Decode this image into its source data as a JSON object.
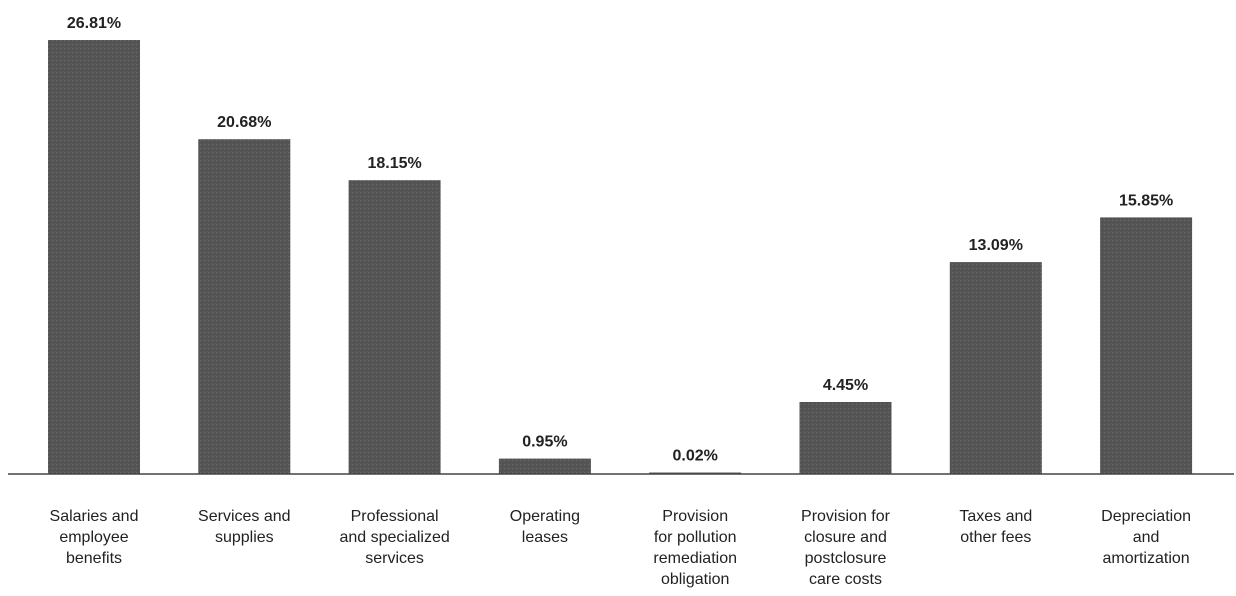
{
  "chart_data": {
    "type": "bar",
    "title": "",
    "xlabel": "",
    "ylabel": "",
    "ylim": [
      0,
      26.81
    ],
    "grid": false,
    "legend": "none",
    "bar_color": "#555555",
    "categories": [
      [
        "Salaries and",
        "employee",
        "benefits"
      ],
      [
        "Services and",
        "supplies"
      ],
      [
        "Professional",
        "and specialized",
        "services"
      ],
      [
        "Operating",
        "leases"
      ],
      [
        "Provision",
        "for pollution",
        "remediation",
        "obligation"
      ],
      [
        "Provision for",
        "closure and",
        "postclosure",
        "care costs"
      ],
      [
        "Taxes and",
        "other fees"
      ],
      [
        "Depreciation",
        "and",
        "amortization"
      ]
    ],
    "values": [
      26.81,
      20.68,
      18.15,
      0.95,
      0.02,
      4.45,
      13.09,
      15.85
    ],
    "value_labels": [
      "26.81%",
      "20.68%",
      "18.15%",
      "0.95%",
      "0.02%",
      "4.45%",
      "13.09%",
      "15.85%"
    ]
  }
}
